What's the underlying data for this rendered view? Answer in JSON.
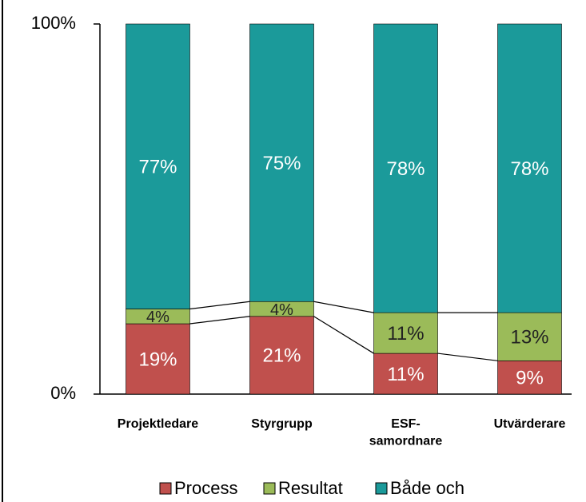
{
  "chart_data": {
    "type": "stacked_bar_100",
    "categories": [
      "Projektledare",
      "Styrgrupp",
      "ESF-samordnare",
      "Utvärderare"
    ],
    "series": [
      {
        "name": "Process",
        "color": "#c0504d",
        "values": [
          19,
          21,
          11,
          9
        ],
        "value_labels": [
          "19%",
          "21%",
          "11%",
          "9%"
        ]
      },
      {
        "name": "Resultat",
        "color": "#9bbb59",
        "values": [
          4,
          4,
          11,
          13
        ],
        "value_labels": [
          "4%",
          "4%",
          "11%",
          "13%"
        ]
      },
      {
        "name": "Både och",
        "color": "#1b9a9a",
        "values": [
          77,
          75,
          78,
          78
        ],
        "value_labels": [
          "77%",
          "75%",
          "78%",
          "78%"
        ]
      }
    ],
    "ylim": [
      0,
      100
    ],
    "yticks": [
      {
        "value": 0,
        "label": "0%"
      },
      {
        "value": 100,
        "label": "100%"
      }
    ],
    "series_lines": true,
    "legend": "bottom"
  }
}
